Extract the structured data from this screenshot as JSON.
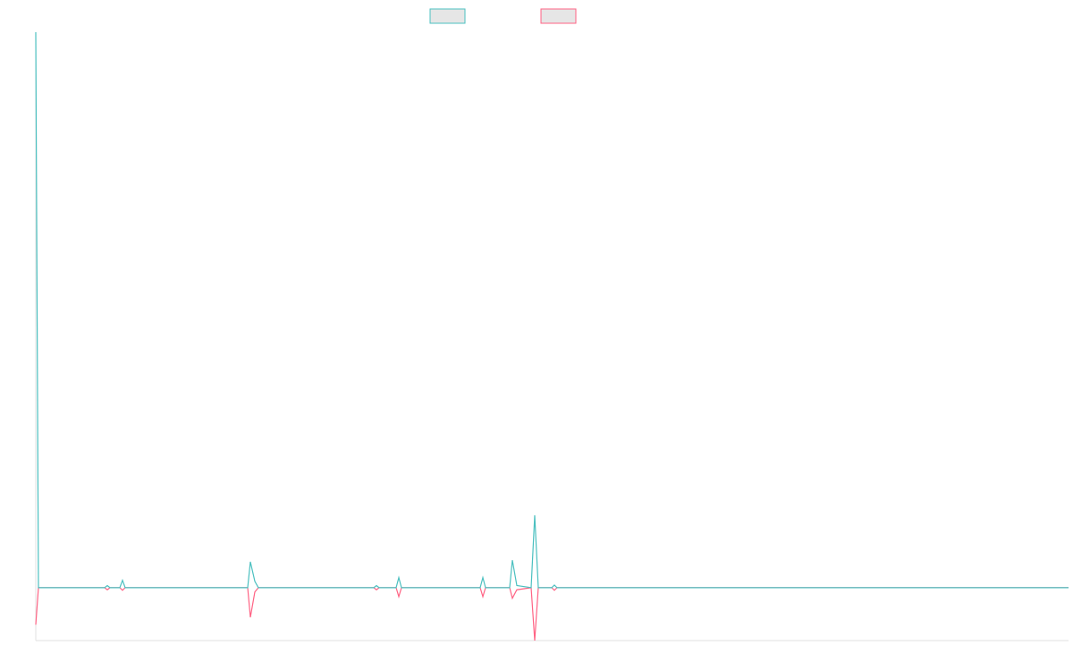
{
  "chart_data": {
    "type": "line",
    "x": [
      0,
      3,
      77,
      80,
      83,
      94,
      97,
      100,
      237,
      240,
      245,
      249,
      378,
      381,
      384,
      403,
      406,
      409,
      497,
      500,
      503,
      530,
      533,
      538,
      554,
      558,
      562,
      577,
      580,
      583,
      1155
    ],
    "series": [
      {
        "color": "#4bc0c0",
        "values": [
          105,
          0,
          0,
          0.4,
          0,
          0,
          1.4,
          0,
          0,
          4.9,
          1.2,
          0,
          0,
          0.4,
          0,
          0,
          1.9,
          0,
          0,
          1.9,
          0,
          0,
          5.2,
          0.4,
          0,
          13.7,
          0,
          0,
          0.5,
          0,
          0
        ]
      },
      {
        "color": "#ff6384",
        "values": [
          -7,
          0,
          0,
          -0.4,
          0,
          0,
          -0.5,
          0,
          0,
          -5.6,
          -0.8,
          0,
          0,
          -0.4,
          0,
          0,
          -1.7,
          0,
          0,
          -1.7,
          0,
          0,
          -2,
          -0.4,
          0,
          -10,
          0,
          0,
          -0.5,
          0,
          0
        ]
      }
    ],
    "xlim": [
      0,
      1155
    ],
    "ylim": [
      -10,
      105
    ]
  }
}
